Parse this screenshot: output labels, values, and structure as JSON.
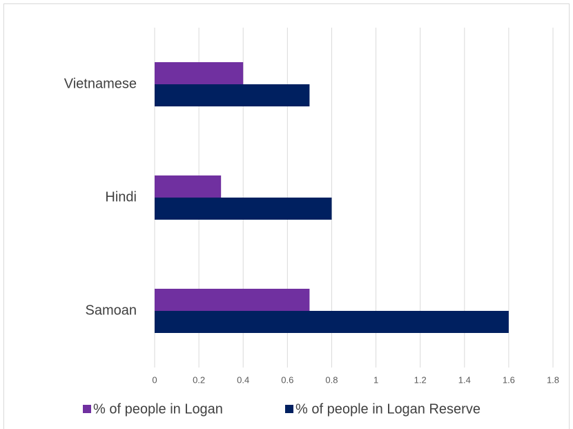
{
  "chart_data": {
    "type": "bar",
    "orientation": "horizontal",
    "categories": [
      "Samoan",
      "Hindi",
      "Vietnamese"
    ],
    "series": [
      {
        "name": "% of people in Logan",
        "color": "#7030a0",
        "values": [
          0.7,
          0.3,
          0.4
        ]
      },
      {
        "name": "% of people in Logan Reserve",
        "color": "#002060",
        "values": [
          1.6,
          0.8,
          0.7
        ]
      }
    ],
    "xlim": [
      0,
      1.8
    ],
    "xticks": [
      0,
      0.2,
      0.4,
      0.6,
      0.8,
      1,
      1.2,
      1.4,
      1.6,
      1.8
    ],
    "grid": true,
    "legend": "bottom"
  }
}
